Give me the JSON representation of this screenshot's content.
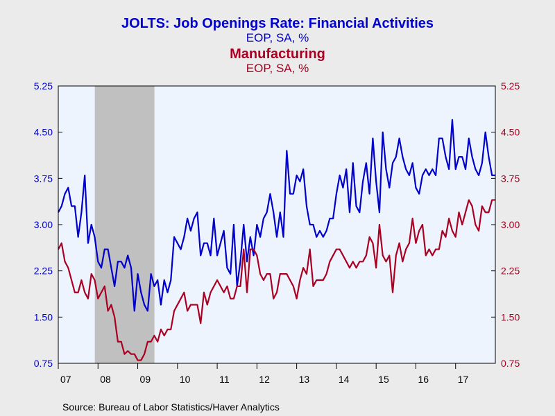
{
  "chart_data": {
    "type": "line",
    "title": "JOLTS: Job Openings Rate: Financial Activities",
    "title_units": "EOP, SA, %",
    "title2": "Manufacturing",
    "title2_units": "EOP, SA, %",
    "source": "Source:  Bureau of Labor Statistics/Haver Analytics",
    "x_start": 2007.0,
    "x_step": 0.08333,
    "xlim": [
      2007.0,
      2018.0
    ],
    "x_tick_values": [
      2007,
      2008,
      2009,
      2010,
      2011,
      2012,
      2013,
      2014,
      2015,
      2016,
      2017
    ],
    "x_tick_labels": [
      "07",
      "08",
      "09",
      "10",
      "11",
      "12",
      "13",
      "14",
      "15",
      "16",
      "17"
    ],
    "ylim": [
      0.75,
      5.25
    ],
    "y_ticks": [
      0.75,
      1.5,
      2.25,
      3.0,
      3.75,
      4.5,
      5.25
    ],
    "y_tick_labels": [
      "0.75",
      "1.50",
      "2.25",
      "3.00",
      "3.75",
      "4.50",
      "5.25"
    ],
    "grid": false,
    "recession_shading": [
      2007.92,
      2009.42
    ],
    "colors": {
      "background": "#ebebeb",
      "plot": "#eef4fd",
      "recession": "#c0c0c0",
      "financial": "#0000cc",
      "manufacturing": "#aa0022"
    },
    "series": [
      {
        "key": "financial",
        "color": "#0000cc",
        "axis": "left",
        "values": [
          3.2,
          3.3,
          3.5,
          3.6,
          3.3,
          3.3,
          2.8,
          3.2,
          3.8,
          2.7,
          3.0,
          2.8,
          2.4,
          2.3,
          2.6,
          2.6,
          2.3,
          2.0,
          2.4,
          2.4,
          2.3,
          2.5,
          2.3,
          1.6,
          2.2,
          1.9,
          1.7,
          1.6,
          2.2,
          2.0,
          2.1,
          1.7,
          2.1,
          1.9,
          2.1,
          2.8,
          2.7,
          2.6,
          2.8,
          3.1,
          2.9,
          3.1,
          3.2,
          2.5,
          2.7,
          2.7,
          2.5,
          3.1,
          2.5,
          2.7,
          2.9,
          2.3,
          2.2,
          3.0,
          2.0,
          2.4,
          3.0,
          2.4,
          2.8,
          2.5,
          3.0,
          2.8,
          3.1,
          3.2,
          3.5,
          3.2,
          2.8,
          3.2,
          2.8,
          4.2,
          3.5,
          3.5,
          3.8,
          3.7,
          3.9,
          3.3,
          3.0,
          3.0,
          2.8,
          2.9,
          2.8,
          2.9,
          3.1,
          3.1,
          3.5,
          3.8,
          3.6,
          3.9,
          3.2,
          4.0,
          3.3,
          3.2,
          3.7,
          4.0,
          3.5,
          4.4,
          3.7,
          3.2,
          4.5,
          3.9,
          3.6,
          4.0,
          4.1,
          4.4,
          4.1,
          3.9,
          3.8,
          4.0,
          3.6,
          3.5,
          3.8,
          3.9,
          3.8,
          3.9,
          3.8,
          4.4,
          4.4,
          4.1,
          3.9,
          4.7,
          3.9,
          4.1,
          4.1,
          3.9,
          4.4,
          4.1,
          3.9,
          3.8,
          4.0,
          4.5,
          4.1,
          3.8,
          3.8
        ]
      },
      {
        "key": "manufacturing",
        "color": "#aa0022",
        "axis": "right",
        "values": [
          2.6,
          2.7,
          2.4,
          2.3,
          2.1,
          1.9,
          1.9,
          2.1,
          1.9,
          1.8,
          2.2,
          2.1,
          1.8,
          1.9,
          2.0,
          1.6,
          1.7,
          1.5,
          1.1,
          1.1,
          0.9,
          0.95,
          0.9,
          0.9,
          0.8,
          0.8,
          0.9,
          1.1,
          1.1,
          1.2,
          1.1,
          1.3,
          1.2,
          1.3,
          1.3,
          1.6,
          1.7,
          1.8,
          1.9,
          1.6,
          1.7,
          1.7,
          1.7,
          1.4,
          1.9,
          1.7,
          1.9,
          2.0,
          2.1,
          2.0,
          1.9,
          2.0,
          1.8,
          1.8,
          2.0,
          2.0,
          2.6,
          1.9,
          2.6,
          2.6,
          2.5,
          2.2,
          2.1,
          2.2,
          2.2,
          1.8,
          1.9,
          2.2,
          2.2,
          2.2,
          2.1,
          2.0,
          1.8,
          2.1,
          2.3,
          2.2,
          2.6,
          2.0,
          2.1,
          2.1,
          2.1,
          2.2,
          2.4,
          2.5,
          2.6,
          2.6,
          2.5,
          2.4,
          2.3,
          2.4,
          2.3,
          2.4,
          2.4,
          2.5,
          2.8,
          2.7,
          2.3,
          3.0,
          2.5,
          2.4,
          2.5,
          1.9,
          2.5,
          2.7,
          2.4,
          2.6,
          2.7,
          3.1,
          2.7,
          2.9,
          3.0,
          2.5,
          2.6,
          2.5,
          2.6,
          2.6,
          2.9,
          2.8,
          3.1,
          2.9,
          2.8,
          3.2,
          3.0,
          3.2,
          3.4,
          3.3,
          3.0,
          2.9,
          3.3,
          3.2,
          3.2,
          3.4,
          3.4
        ]
      }
    ]
  }
}
